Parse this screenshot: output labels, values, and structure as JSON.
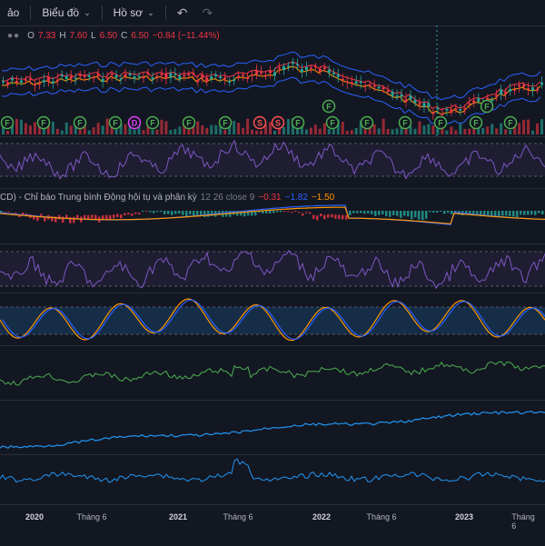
{
  "toolbar": {
    "partial_label": "ảo",
    "chart_label": "Biểu đồ",
    "account_label": "Hồ sơ",
    "undo_icon": "↶",
    "redo_icon": "↷"
  },
  "legend": {
    "open_k": "O",
    "open_v": "7.33",
    "high_k": "H",
    "high_v": "7.60",
    "low_k": "L",
    "low_v": "6.50",
    "close_k": "C",
    "close_v": "6.50",
    "change": "−0.84 (−11.44%)"
  },
  "macd": {
    "name": "CD) - Chỉ báo Trung bình Động hội tụ và phân kỳ",
    "params": "12 26 close 9",
    "v1": "−0.31",
    "v2": "−1.82",
    "v3": "−1.50"
  },
  "xaxis": {
    "y2020": "2020",
    "t1": "Tháng 6",
    "y2021": "2021",
    "t2": "Tháng 6",
    "y2022": "2022",
    "t3": "Tháng 6",
    "y2023": "2023",
    "t4": "Tháng 6"
  },
  "markers": {
    "f": "F",
    "d": "D",
    "s": "S"
  },
  "colors": {
    "up": "#26a69a",
    "down": "#f23645",
    "macd": "#2962ff",
    "signal": "#ff9800",
    "rsi": "#7e57c2",
    "green_line": "#4caf50",
    "blue_line": "#2196f3"
  }
}
